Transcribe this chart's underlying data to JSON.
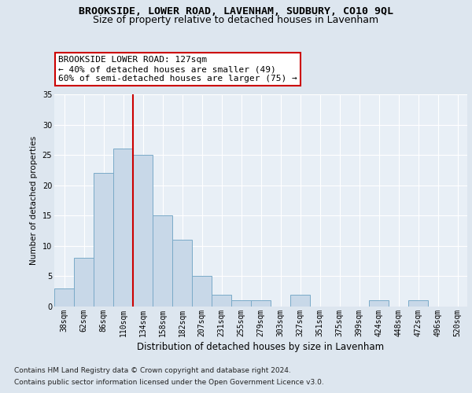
{
  "title": "BROOKSIDE, LOWER ROAD, LAVENHAM, SUDBURY, CO10 9QL",
  "subtitle": "Size of property relative to detached houses in Lavenham",
  "xlabel": "Distribution of detached houses by size in Lavenham",
  "ylabel": "Number of detached properties",
  "categories": [
    "38sqm",
    "62sqm",
    "86sqm",
    "110sqm",
    "134sqm",
    "158sqm",
    "182sqm",
    "207sqm",
    "231sqm",
    "255sqm",
    "279sqm",
    "303sqm",
    "327sqm",
    "351sqm",
    "375sqm",
    "399sqm",
    "424sqm",
    "448sqm",
    "472sqm",
    "496sqm",
    "520sqm"
  ],
  "values": [
    3,
    8,
    22,
    26,
    25,
    15,
    11,
    5,
    2,
    1,
    1,
    0,
    2,
    0,
    0,
    0,
    1,
    0,
    1,
    0,
    0
  ],
  "bar_color": "#c8d8e8",
  "bar_edge_color": "#7aaac8",
  "bar_edge_width": 0.7,
  "red_line_x": 4.0,
  "red_line_color": "#cc0000",
  "annotation_text": "BROOKSIDE LOWER ROAD: 127sqm\n← 40% of detached houses are smaller (49)\n60% of semi-detached houses are larger (75) →",
  "annotation_box_color": "#ffffff",
  "annotation_box_edge": "#cc0000",
  "ylim": [
    0,
    35
  ],
  "yticks": [
    0,
    5,
    10,
    15,
    20,
    25,
    30,
    35
  ],
  "footer1": "Contains HM Land Registry data © Crown copyright and database right 2024.",
  "footer2": "Contains public sector information licensed under the Open Government Licence v3.0.",
  "bg_color": "#dde6ef",
  "plot_bg_color": "#e8eff6",
  "grid_color": "#ffffff",
  "title_fontsize": 9.5,
  "subtitle_fontsize": 9,
  "xlabel_fontsize": 8.5,
  "ylabel_fontsize": 7.5,
  "tick_fontsize": 7,
  "footer_fontsize": 6.5,
  "annotation_fontsize": 8
}
